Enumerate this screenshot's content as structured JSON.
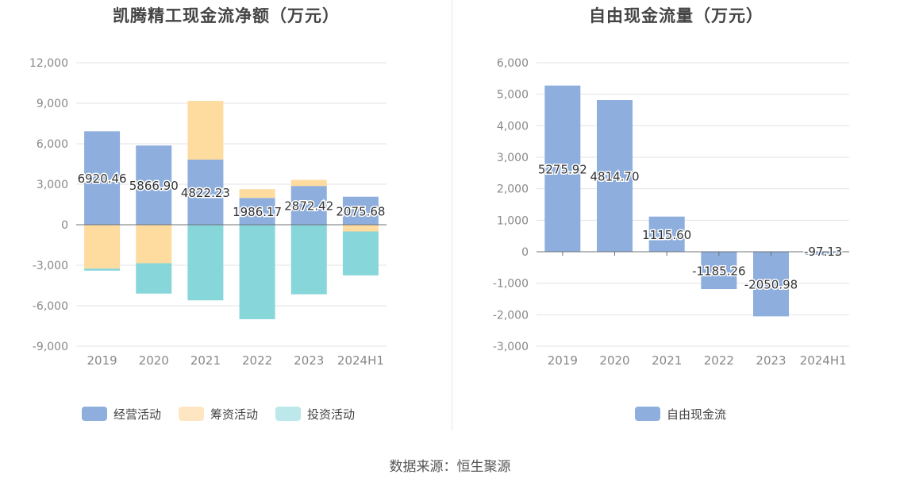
{
  "source": "数据来源：恒生聚源",
  "chart_data": [
    {
      "type": "bar",
      "stacked": true,
      "title": "凯腾精工现金流净额（万元）",
      "categories": [
        "2019",
        "2020",
        "2021",
        "2022",
        "2023",
        "2024H1"
      ],
      "ylim": [
        -9000,
        12000
      ],
      "yticks": [
        12000,
        9000,
        6000,
        3000,
        0,
        -3000,
        -6000,
        -9000
      ],
      "ytick_labels": [
        "12,000",
        "9,000",
        "6,000",
        "3,000",
        "0",
        "-3,000",
        "-6,000",
        "-9,000"
      ],
      "grid": true,
      "legend_position": "bottom",
      "series": [
        {
          "name": "经营活动",
          "color": "#8eaedd",
          "values": [
            6920.46,
            5866.9,
            4822.23,
            1986.17,
            2872.42,
            2075.68
          ]
        },
        {
          "name": "筹资活动",
          "color": "#fedb9f",
          "values": [
            -3250,
            -2850,
            4350,
            650,
            450,
            -500
          ]
        },
        {
          "name": "投资活动",
          "color": "#86d6da",
          "values": [
            -150,
            -2250,
            -5600,
            -7000,
            -5150,
            -3250
          ]
        }
      ],
      "data_labels": [
        "6920.46",
        "5866.90",
        "4822.23",
        "1986.17",
        "2872.42",
        "2075.68"
      ]
    },
    {
      "type": "bar",
      "title": "自由现金流量（万元）",
      "categories": [
        "2019",
        "2020",
        "2021",
        "2022",
        "2023",
        "2024H1"
      ],
      "ylim": [
        -3000,
        6000
      ],
      "yticks": [
        6000,
        5000,
        4000,
        3000,
        2000,
        1000,
        0,
        -1000,
        -2000,
        -3000
      ],
      "ytick_labels": [
        "6,000",
        "5,000",
        "4,000",
        "3,000",
        "2,000",
        "1,000",
        "0",
        "-1,000",
        "-2,000",
        "-3,000"
      ],
      "grid": true,
      "legend_position": "bottom",
      "series": [
        {
          "name": "自由现金流",
          "color": "#8eaedd",
          "values": [
            5275.92,
            4814.7,
            1115.6,
            -1185.26,
            -2050.98,
            -97.13
          ]
        }
      ],
      "data_labels": [
        "5275.92",
        "4814.70",
        "1115.60",
        "-1185.26",
        "-2050.98",
        "-97.13"
      ]
    }
  ]
}
